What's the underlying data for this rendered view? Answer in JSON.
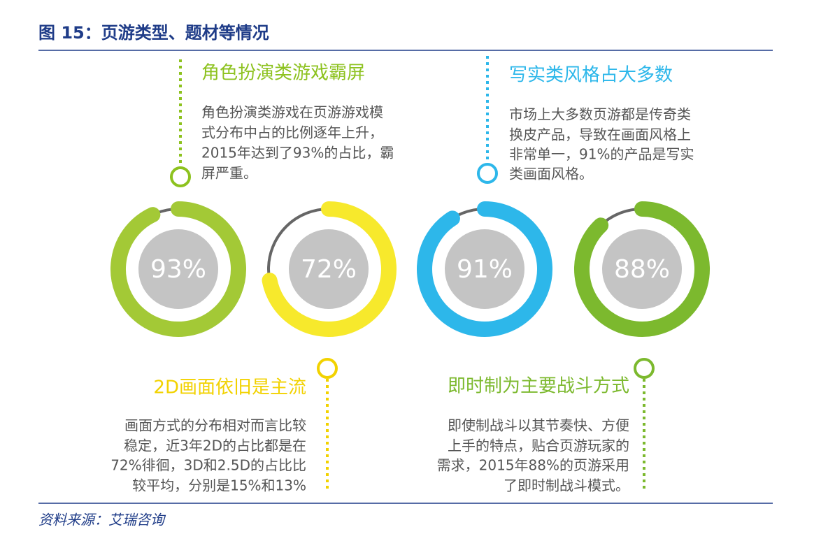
{
  "header": {
    "title": "图 15：页游类型、题材等情况"
  },
  "donuts": [
    {
      "value": 93,
      "value_label": "93%",
      "color": "#a3c936"
    },
    {
      "value": 72,
      "value_label": "72%",
      "color": "#f7e92c"
    },
    {
      "value": 91,
      "value_label": "91%",
      "color": "#2db7ea"
    },
    {
      "value": 88,
      "value_label": "88%",
      "color": "#7cb92e"
    }
  ],
  "callouts": [
    {
      "heading": "角色扮演类游戏霸屏",
      "color": "#8dc21f",
      "lines": [
        "角色扮演类游戏在页游游戏模",
        "式分布中占的比例逐年上升，",
        "2015年达到了93%的占比，霸",
        "屏严重。"
      ]
    },
    {
      "heading": "写实类风格占大多数",
      "color": "#2db7ea",
      "lines": [
        "市场上大多数页游都是传奇类",
        "换皮产品，导致在画面风格上",
        "非常单一，91%的产品是写实",
        "类画面风格。"
      ]
    },
    {
      "heading": "2D画面依旧是主流",
      "color": "#f2d200",
      "lines": [
        "画面方式的分布相对而言比较",
        "稳定，近3年2D的占比都是在",
        "72%徘徊，3D和2.5D的占比比",
        "较平均，分别是15%和13%"
      ]
    },
    {
      "heading": "即时制为主要战斗方式",
      "color": "#7cb92e",
      "lines": [
        "即使制战斗以其节奏快、方便",
        "上手的特点，贴合页游玩家的",
        "需求，2015年88%的页游采用",
        "了即时制战斗模式。"
      ]
    }
  ],
  "source": "资料来源：艾瑞咨询"
}
